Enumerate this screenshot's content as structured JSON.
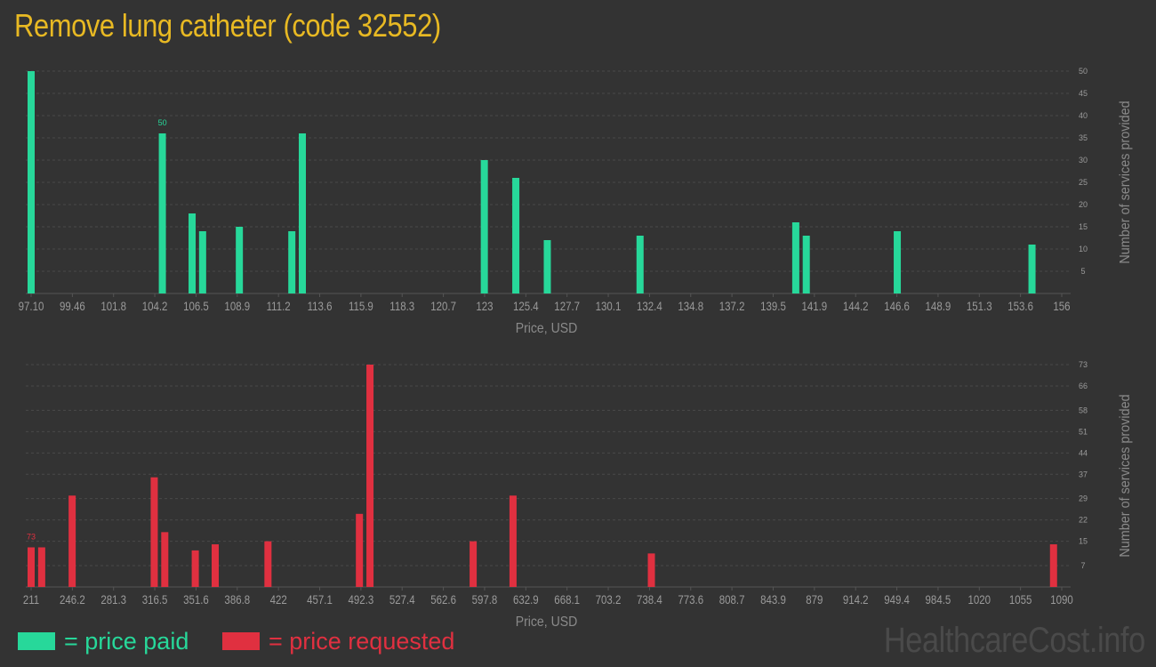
{
  "title": "Remove lung catheter (code 32552)",
  "legend": [
    {
      "label": "= price paid",
      "color": "#27d89a"
    },
    {
      "label": "= price requested",
      "color": "#e03040"
    }
  ],
  "watermark": "HealthcareCost.info",
  "chart_data": [
    {
      "type": "bar",
      "name": "price paid",
      "color": "#27d89a",
      "xlabel": "Price, USD",
      "ylabel": "Number of services provided",
      "xlim": [
        97.1,
        156
      ],
      "ylim": [
        0,
        50
      ],
      "x_tick_labels": [
        "97.10",
        "99.46",
        "101.8",
        "104.2",
        "106.5",
        "108.9",
        "111.2",
        "113.6",
        "115.9",
        "118.3",
        "120.7",
        "123",
        "125.4",
        "127.7",
        "130.1",
        "132.4",
        "134.8",
        "137.2",
        "139.5",
        "141.9",
        "144.2",
        "146.6",
        "148.9",
        "151.3",
        "153.6",
        "156"
      ],
      "y_ticks": [
        5,
        10,
        15,
        20,
        25,
        30,
        35,
        40,
        45,
        50
      ],
      "max_label": "50",
      "bars": [
        {
          "x": 97.1,
          "y": 50
        },
        {
          "x": 104.6,
          "y": 36
        },
        {
          "x": 106.3,
          "y": 18
        },
        {
          "x": 106.9,
          "y": 14
        },
        {
          "x": 109.0,
          "y": 15
        },
        {
          "x": 112.0,
          "y": 14
        },
        {
          "x": 112.6,
          "y": 36
        },
        {
          "x": 123.0,
          "y": 30
        },
        {
          "x": 124.8,
          "y": 26
        },
        {
          "x": 126.6,
          "y": 12
        },
        {
          "x": 131.9,
          "y": 13
        },
        {
          "x": 140.8,
          "y": 16
        },
        {
          "x": 141.4,
          "y": 13
        },
        {
          "x": 146.6,
          "y": 14
        },
        {
          "x": 154.3,
          "y": 11
        }
      ]
    },
    {
      "type": "bar",
      "name": "price requested",
      "color": "#e03040",
      "xlabel": "Price, USD",
      "ylabel": "Number of services provided",
      "xlim": [
        211,
        1090
      ],
      "ylim": [
        0,
        73
      ],
      "x_tick_labels": [
        "211",
        "246.2",
        "281.3",
        "316.5",
        "351.6",
        "386.8",
        "422",
        "457.1",
        "492.3",
        "527.4",
        "562.6",
        "597.8",
        "632.9",
        "668.1",
        "703.2",
        "738.4",
        "773.6",
        "808.7",
        "843.9",
        "879",
        "914.2",
        "949.4",
        "984.5",
        "1020",
        "1055",
        "1090"
      ],
      "y_ticks": [
        7,
        15,
        22,
        29,
        37,
        44,
        51,
        58,
        66,
        73
      ],
      "max_label": "73",
      "bars": [
        {
          "x": 211,
          "y": 13
        },
        {
          "x": 220,
          "y": 13
        },
        {
          "x": 246,
          "y": 30
        },
        {
          "x": 316,
          "y": 36
        },
        {
          "x": 325,
          "y": 18
        },
        {
          "x": 351,
          "y": 12
        },
        {
          "x": 368,
          "y": 14
        },
        {
          "x": 413,
          "y": 15
        },
        {
          "x": 491,
          "y": 24
        },
        {
          "x": 500,
          "y": 73
        },
        {
          "x": 588,
          "y": 15
        },
        {
          "x": 622,
          "y": 30
        },
        {
          "x": 740,
          "y": 11
        },
        {
          "x": 1083,
          "y": 14
        }
      ]
    }
  ]
}
